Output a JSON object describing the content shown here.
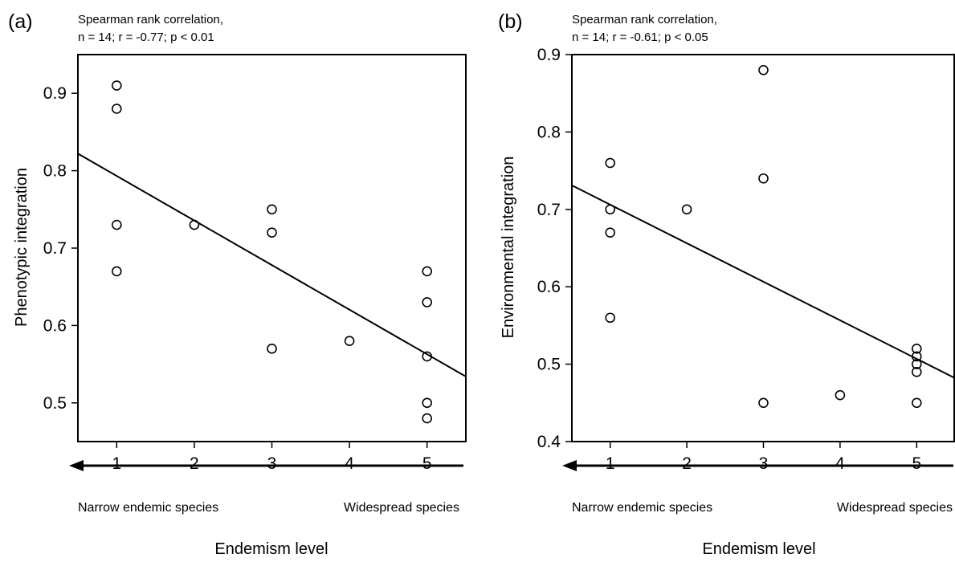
{
  "chart_data": [
    {
      "type": "scatter",
      "panel_label": "(a)",
      "annotation": [
        "Spearman rank correlation,",
        "n = 14; r = -0.77; p < 0.01"
      ],
      "ylabel": "Phenotypic integration",
      "xlabel": "Endemism level",
      "x_ticks": [
        1,
        2,
        3,
        4,
        5
      ],
      "y_ticks": [
        0.5,
        0.6,
        0.7,
        0.8,
        0.9
      ],
      "y_tick_labels": [
        "0.5",
        "0.6",
        "0.7",
        "0.8",
        "0.9"
      ],
      "xlim": [
        0.5,
        5.5
      ],
      "ylim": [
        0.45,
        0.95
      ],
      "points": [
        {
          "x": 1,
          "y": 0.91
        },
        {
          "x": 1,
          "y": 0.88
        },
        {
          "x": 1,
          "y": 0.73
        },
        {
          "x": 1,
          "y": 0.67
        },
        {
          "x": 2,
          "y": 0.73
        },
        {
          "x": 3,
          "y": 0.75
        },
        {
          "x": 3,
          "y": 0.72
        },
        {
          "x": 3,
          "y": 0.57
        },
        {
          "x": 4,
          "y": 0.58
        },
        {
          "x": 5,
          "y": 0.67
        },
        {
          "x": 5,
          "y": 0.63
        },
        {
          "x": 5,
          "y": 0.56
        },
        {
          "x": 5,
          "y": 0.5
        },
        {
          "x": 5,
          "y": 0.48
        }
      ],
      "fit_line": {
        "x": [
          0.5,
          5.5
        ],
        "y": [
          0.822,
          0.534
        ]
      },
      "arrow_labels": {
        "left": "Narrow endemic species",
        "right": "Widespread species"
      },
      "grid": false
    },
    {
      "type": "scatter",
      "panel_label": "(b)",
      "annotation": [
        "Spearman rank correlation,",
        "n = 14; r = -0.61; p < 0.05"
      ],
      "ylabel": "Environmental integration",
      "xlabel": "Endemism level",
      "x_ticks": [
        1,
        2,
        3,
        4,
        5
      ],
      "y_ticks": [
        0.4,
        0.5,
        0.6,
        0.7,
        0.8,
        0.9
      ],
      "y_tick_labels": [
        "0.4",
        "0.5",
        "0.6",
        "0.7",
        "0.8",
        "0.9"
      ],
      "xlim": [
        0.5,
        5.5
      ],
      "ylim": [
        0.4,
        0.9
      ],
      "points": [
        {
          "x": 1,
          "y": 0.76
        },
        {
          "x": 1,
          "y": 0.7
        },
        {
          "x": 1,
          "y": 0.67
        },
        {
          "x": 1,
          "y": 0.56
        },
        {
          "x": 2,
          "y": 0.7
        },
        {
          "x": 3,
          "y": 0.88
        },
        {
          "x": 3,
          "y": 0.74
        },
        {
          "x": 3,
          "y": 0.45
        },
        {
          "x": 4,
          "y": 0.46
        },
        {
          "x": 5,
          "y": 0.52
        },
        {
          "x": 5,
          "y": 0.51
        },
        {
          "x": 5,
          "y": 0.5
        },
        {
          "x": 5,
          "y": 0.49
        },
        {
          "x": 5,
          "y": 0.45
        }
      ],
      "fit_line": {
        "x": [
          0.5,
          5.5
        ],
        "y": [
          0.731,
          0.482
        ]
      },
      "arrow_labels": {
        "left": "Narrow endemic species",
        "right": "Widespread species"
      },
      "grid": false
    }
  ]
}
